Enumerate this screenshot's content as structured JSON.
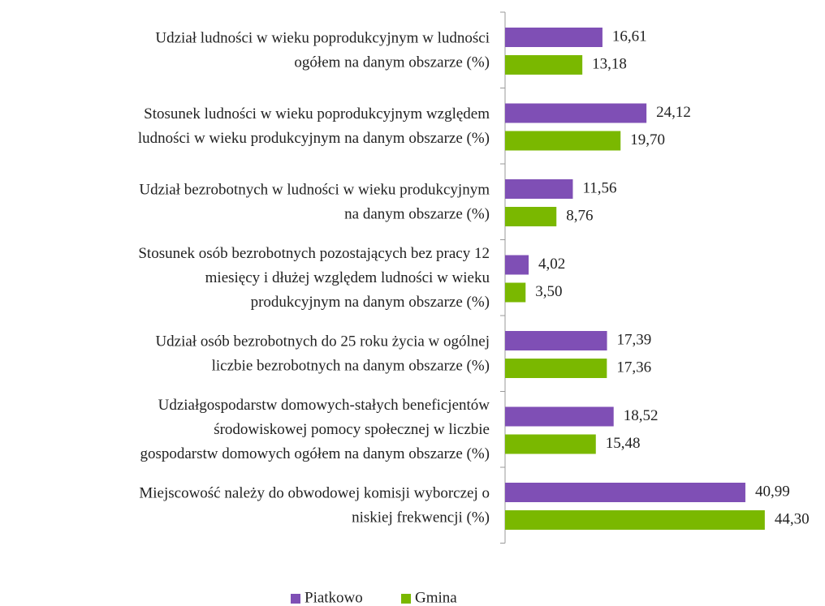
{
  "chart_data": {
    "type": "bar",
    "orientation": "horizontal",
    "categories": [
      [
        "Udział ludności w wieku poprodukcyjnym w ludności",
        "ogółem na danym obszarze (%)"
      ],
      [
        "Stosunek ludności w wieku poprodukcyjnym względem",
        "ludności w wieku produkcyjnym na danym obszarze (%)"
      ],
      [
        "Udział bezrobotnych w ludności w wieku produkcyjnym",
        "na danym obszarze (%)"
      ],
      [
        "Stosunek osób bezrobotnych pozostających bez pracy 12",
        "miesięcy i dłużej względem ludności w wieku",
        "produkcyjnym na danym obszarze (%)"
      ],
      [
        "Udział osób bezrobotnych do 25 roku życia w ogólnej",
        "liczbie bezrobotnych na danym obszarze (%)"
      ],
      [
        "Udziałgospodarstw domowych-stałych beneficjentów",
        "środowiskowej pomocy społecznej w liczbie",
        "gospodarstw domowych ogółem na danym obszarze (%)"
      ],
      [
        "Miejscowość należy do obwodowej komisji wyborczej o",
        "niskiej frekwencji (%)"
      ]
    ],
    "series": [
      {
        "name": "Piatkowo",
        "color": "#7f4fb5",
        "values": [
          16.61,
          24.12,
          11.56,
          4.02,
          17.39,
          18.52,
          40.99
        ],
        "value_labels": [
          "16,61",
          "24,12",
          "11,56",
          "4,02",
          "17,39",
          "18,52",
          "40,99"
        ]
      },
      {
        "name": "Gmina",
        "color": "#7ab800",
        "values": [
          13.18,
          19.7,
          8.76,
          3.5,
          17.36,
          15.48,
          44.3
        ],
        "value_labels": [
          "13,18",
          "19,70",
          "8,76",
          "3,50",
          "17,36",
          "15,48",
          "44,30"
        ]
      }
    ],
    "xlim": [
      0,
      50
    ],
    "legend": "bottom"
  }
}
